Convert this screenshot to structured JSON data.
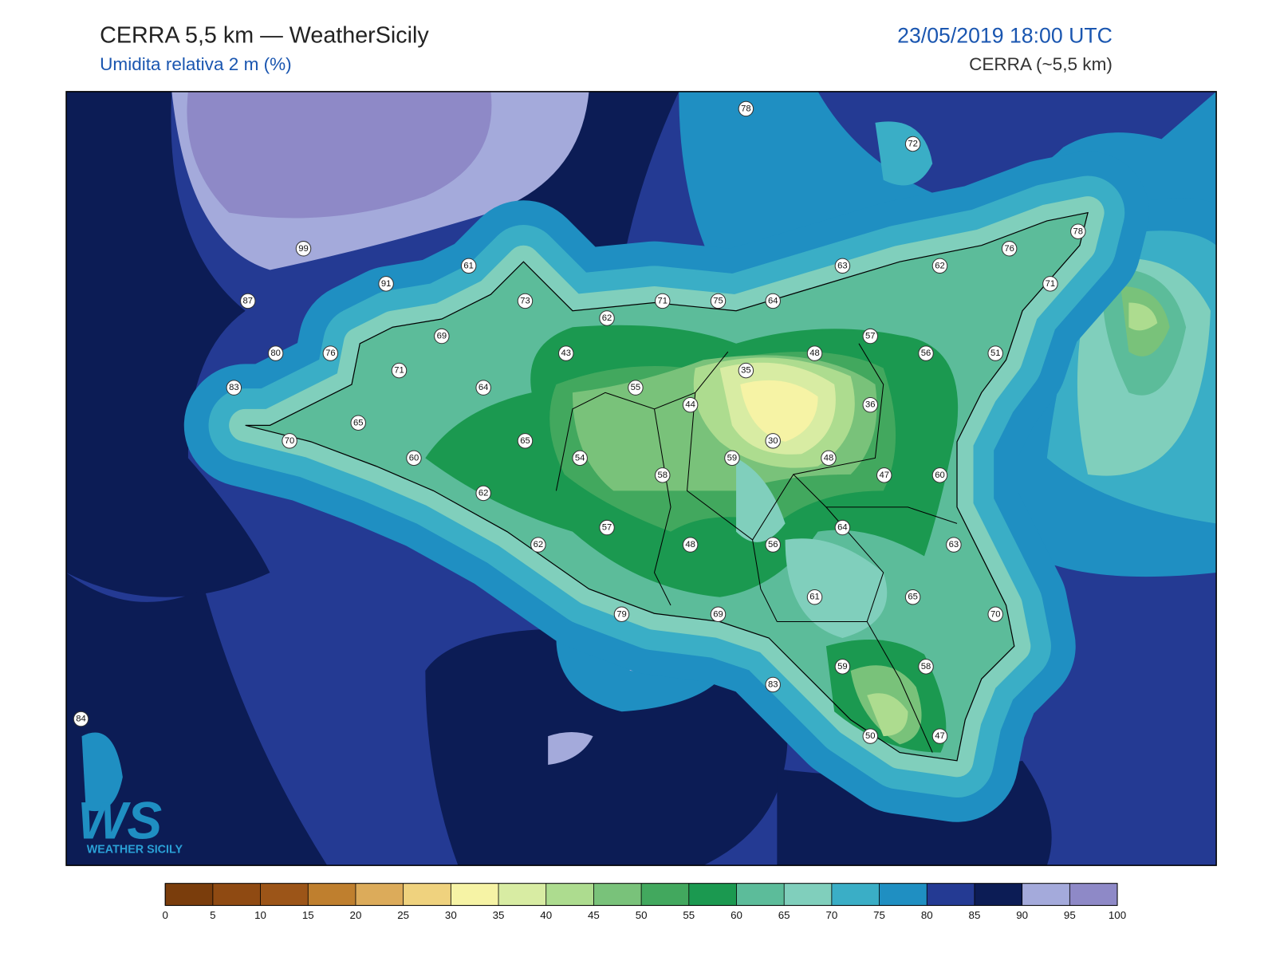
{
  "header": {
    "title": "CERRA 5,5 km — WeatherSicily",
    "subtitle": "Umidita relativa 2 m (%)",
    "datetime": "23/05/2019 18:00 UTC",
    "model": "CERRA (~5,5 km)"
  },
  "stations": [
    78,
    72,
    99,
    61,
    91,
    87,
    63,
    62,
    76,
    78,
    71,
    73,
    71,
    75,
    64,
    62,
    69,
    80,
    76,
    43,
    57,
    48,
    56,
    51,
    71,
    35,
    83,
    64,
    55,
    44,
    36,
    65,
    70,
    65,
    30,
    60,
    54,
    59,
    48,
    58,
    47,
    60,
    62,
    57,
    64,
    62,
    48,
    56,
    63,
    61,
    65,
    79,
    69,
    70,
    59,
    58,
    83,
    84,
    50,
    47
  ],
  "colorbar": {
    "ticks": [
      0,
      5,
      10,
      15,
      20,
      25,
      30,
      35,
      40,
      45,
      50,
      55,
      60,
      65,
      70,
      75,
      80,
      85,
      90,
      95,
      100
    ],
    "colors": [
      "#7a3d0c",
      "#8f4a12",
      "#9c5518",
      "#bf7f2e",
      "#dcab5a",
      "#efd27e",
      "#f6f3a5",
      "#d8eca3",
      "#addc8f",
      "#79c27a",
      "#42a85e",
      "#1b9950",
      "#5cbc9a",
      "#80cfbc",
      "#3aaec6",
      "#1f8fc2",
      "#243a93",
      "#0c1c55",
      "#a4aadb",
      "#8e89c7"
    ]
  },
  "logo": {
    "mark": "WS",
    "text": "WEATHER SICILY"
  }
}
